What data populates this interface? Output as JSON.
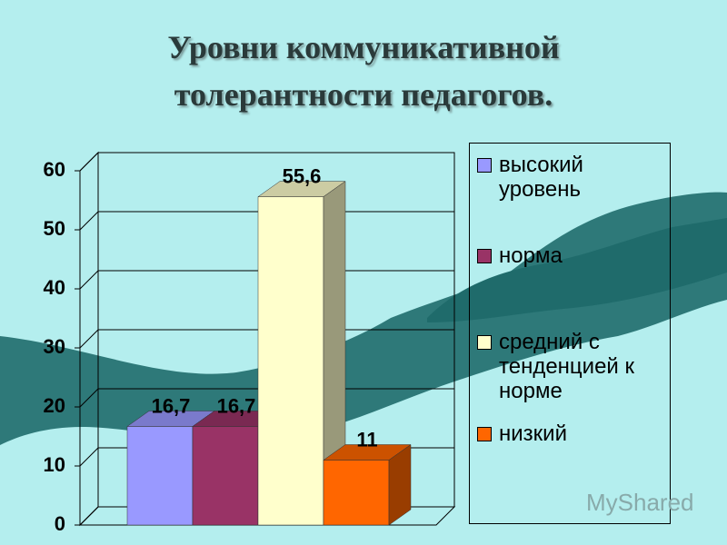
{
  "chart_data": {
    "type": "bar3d",
    "title": "Уровни коммуникативной толерантности педагогов.",
    "ylim": [
      0,
      60
    ],
    "yticks": [
      0,
      10,
      20,
      30,
      40,
      50,
      60
    ],
    "grid": true,
    "series": [
      {
        "name": "высокий уровень",
        "color": "#9999ff",
        "values": [
          16.7
        ],
        "value_labels": [
          "16,7"
        ]
      },
      {
        "name": "норма",
        "color": "#993366",
        "values": [
          16.7
        ],
        "value_labels": [
          "16,7"
        ]
      },
      {
        "name": "средний с тенденцией к норме",
        "color": "#ffffcc",
        "values": [
          55.6
        ],
        "value_labels": [
          "55,6"
        ]
      },
      {
        "name": "низкий",
        "color": "#ff6600",
        "values": [
          11
        ]
      }
    ],
    "legend": "right"
  },
  "watermark": "MyShared"
}
